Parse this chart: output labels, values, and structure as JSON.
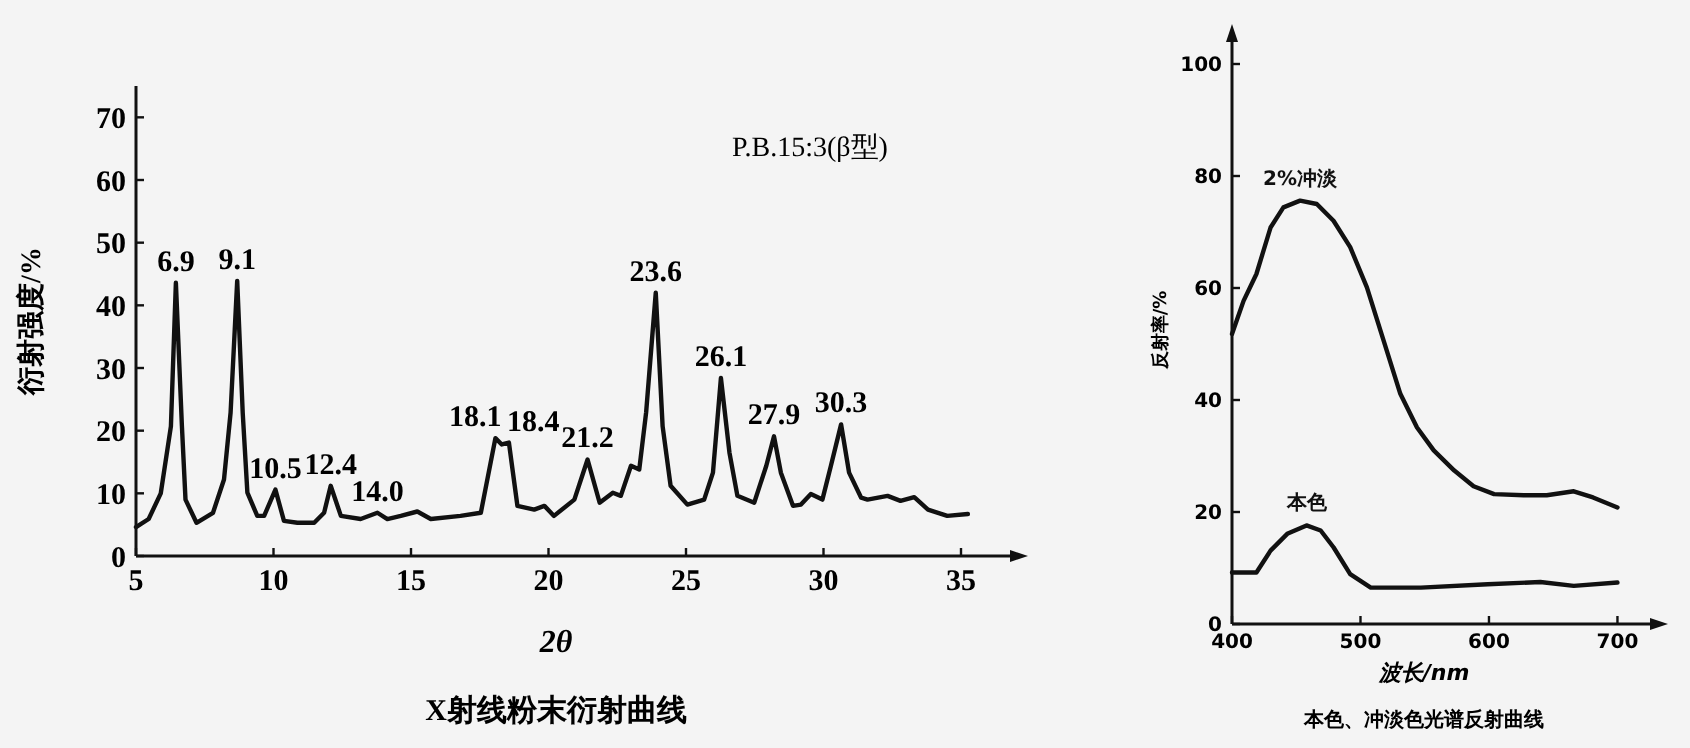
{
  "chart_data": [
    {
      "type": "line",
      "title": "X射线粉末衍射曲线",
      "xlabel": "2θ",
      "ylabel": "衍射强度/%",
      "xlim": [
        5,
        37
      ],
      "ylim": [
        0,
        75
      ],
      "xticks": [
        5,
        10,
        15,
        20,
        25,
        30,
        35
      ],
      "yticks": [
        0,
        10,
        20,
        30,
        40,
        50,
        60,
        70
      ],
      "x": [
        5,
        5.46,
        5.9,
        6.27,
        6.45,
        6.67,
        6.8,
        7.2,
        7.8,
        8.2,
        8.44,
        8.68,
        8.88,
        9.05,
        9.41,
        9.66,
        10.07,
        10.38,
        10.87,
        11.48,
        11.84,
        12.08,
        12.45,
        13.17,
        13.78,
        14.14,
        14.63,
        15.23,
        15.72,
        16.8,
        17.54,
        18.07,
        18.3,
        18.56,
        18.87,
        19.48,
        19.85,
        20.2,
        20.94,
        21.42,
        21.86,
        22.34,
        22.63,
        23.0,
        23.3,
        23.55,
        23.9,
        24.15,
        24.44,
        25.05,
        25.66,
        25.98,
        26.27,
        26.58,
        26.87,
        27.48,
        27.92,
        28.2,
        28.45,
        28.89,
        29.18,
        29.54,
        29.96,
        30.27,
        30.64,
        30.93,
        31.37,
        31.6,
        32.33,
        32.8,
        33.3,
        33.8,
        34.5,
        35.25
      ],
      "series": [
        {
          "color": "#111111",
          "values": [
            4.6,
            5.9,
            10,
            20.7,
            43.6,
            20.7,
            9,
            5.3,
            6.9,
            12.2,
            22.9,
            43.9,
            22.9,
            10.1,
            6.4,
            6.4,
            10.6,
            5.6,
            5.3,
            5.3,
            6.9,
            11.2,
            6.4,
            5.9,
            6.9,
            5.9,
            6.4,
            7.1,
            5.9,
            6.4,
            6.9,
            18.8,
            17.8,
            18.1,
            8.0,
            7.4,
            8.0,
            6.4,
            9.0,
            15.4,
            8.5,
            10.1,
            9.6,
            14.4,
            13.8,
            22.9,
            42.0,
            20.7,
            11.2,
            8.2,
            9.0,
            13.3,
            28.4,
            16.5,
            9.6,
            8.5,
            14.4,
            19.1,
            13.3,
            8.0,
            8.2,
            9.9,
            9.0,
            14.4,
            21.0,
            13.3,
            9.3,
            9.0,
            9.6,
            8.8,
            9.4,
            7.4,
            6.4,
            6.7
          ]
        }
      ],
      "annotations": [
        "P.B.15:3(β型)",
        {
          "text": "6.9",
          "x": 6.45,
          "y": 43.6
        },
        {
          "text": "9.1",
          "x": 8.68,
          "y": 43.9
        },
        {
          "text": "10.5",
          "x": 10.07,
          "y": 10.6
        },
        {
          "text": "12.4",
          "x": 12.08,
          "y": 11.2
        },
        {
          "text": "14.0",
          "x": 13.78,
          "y": 6.9
        },
        {
          "text": "18.1",
          "x": 18.07,
          "y": 18.8
        },
        {
          "text": "18.4",
          "x": 18.56,
          "y": 18.1
        },
        {
          "text": "21.2",
          "x": 21.42,
          "y": 15.4
        },
        {
          "text": "23.6",
          "x": 23.9,
          "y": 42.0
        },
        {
          "text": "26.1",
          "x": 26.27,
          "y": 28.4
        },
        {
          "text": "27.9",
          "x": 28.2,
          "y": 19.1
        },
        {
          "text": "30.3",
          "x": 30.64,
          "y": 21.0
        }
      ]
    },
    {
      "type": "line",
      "title": "本色、冲淡色光谱反射曲线",
      "xlabel": "波长/nm",
      "ylabel": "反射率/%",
      "xlim": [
        400,
        730
      ],
      "ylim": [
        0,
        105
      ],
      "xticks": [
        400,
        500,
        600,
        700
      ],
      "yticks": [
        0,
        20,
        40,
        60,
        80,
        100
      ],
      "series": [
        {
          "name": "2%冲淡",
          "color": "#111111",
          "x": [
            400,
            409,
            419,
            430,
            440,
            453,
            466,
            479,
            492,
            505,
            518,
            531,
            544,
            557,
            573,
            588,
            604,
            627,
            645,
            666,
            681,
            700
          ],
          "values": [
            51.8,
            57.7,
            62.5,
            70.8,
            74.4,
            75.6,
            75,
            72,
            67.3,
            60.1,
            50.6,
            41.1,
            35.1,
            31,
            27.4,
            24.6,
            23.2,
            23.0,
            23,
            23.7,
            22.6,
            20.8
          ]
        },
        {
          "name": "本色",
          "color": "#111111",
          "x": [
            400,
            419,
            430,
            443,
            458,
            469,
            479,
            492,
            508,
            547,
            599,
            640,
            666,
            700
          ],
          "values": [
            9.2,
            9.2,
            13.1,
            16.1,
            17.6,
            16.7,
            13.7,
            8.9,
            6.5,
            6.5,
            7.1,
            7.5,
            6.8,
            7.4
          ]
        }
      ]
    }
  ]
}
